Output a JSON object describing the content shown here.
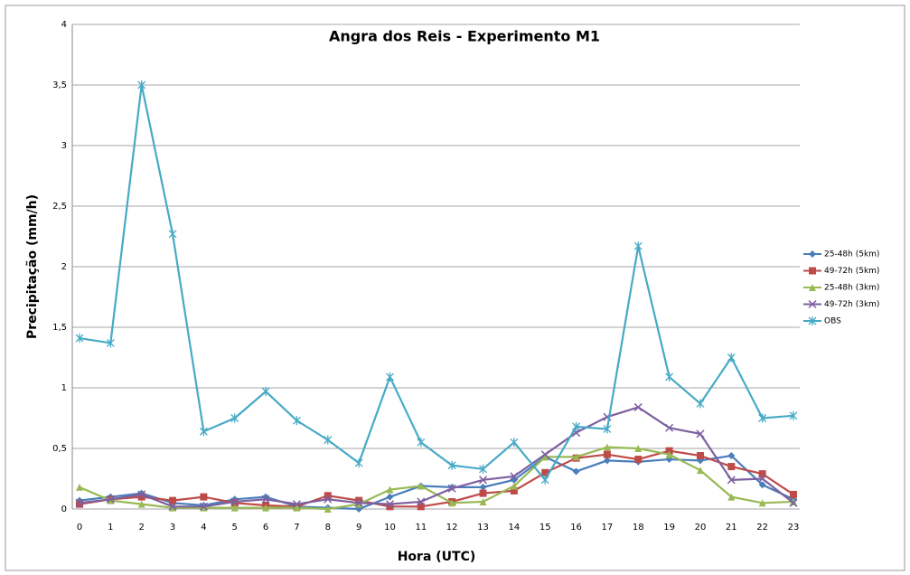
{
  "chart_data": {
    "type": "line",
    "title": "Angra dos Reis - Experimento M1",
    "x_label": "Hora (UTC)",
    "y_label": "Precipitação (mm/h)",
    "categories": [
      "0",
      "1",
      "2",
      "3",
      "4",
      "5",
      "6",
      "7",
      "8",
      "9",
      "10",
      "11",
      "12",
      "13",
      "14",
      "15",
      "16",
      "17",
      "18",
      "19",
      "20",
      "21",
      "22",
      "23"
    ],
    "series": [
      {
        "name": "25-48h (5km)",
        "color": "#4a7ebb",
        "marker": "diamond",
        "values": [
          0.07,
          0.1,
          0.13,
          0.05,
          0.03,
          0.08,
          0.1,
          0.02,
          0.01,
          0.0,
          0.1,
          0.19,
          0.18,
          0.18,
          0.24,
          0.43,
          0.31,
          0.4,
          0.39,
          0.41,
          0.4,
          0.44,
          0.2,
          0.08
        ]
      },
      {
        "name": "49-72h (5km)",
        "color": "#be4b48",
        "marker": "square",
        "values": [
          0.04,
          0.08,
          0.1,
          0.07,
          0.1,
          0.05,
          0.03,
          0.02,
          0.11,
          0.07,
          0.02,
          0.02,
          0.06,
          0.13,
          0.15,
          0.3,
          0.42,
          0.45,
          0.41,
          0.48,
          0.44,
          0.35,
          0.29,
          0.12
        ]
      },
      {
        "name": "25-48h (3km)",
        "color": "#98b954",
        "marker": "triangle",
        "values": [
          0.18,
          0.07,
          0.04,
          0.01,
          0.01,
          0.01,
          0.01,
          0.01,
          0.0,
          0.04,
          0.16,
          0.19,
          0.05,
          0.06,
          0.19,
          0.43,
          0.43,
          0.51,
          0.5,
          0.45,
          0.32,
          0.1,
          0.05,
          0.06
        ]
      },
      {
        "name": "49-72h (3km)",
        "color": "#7d60a0",
        "marker": "x",
        "values": [
          0.05,
          0.08,
          0.12,
          0.02,
          0.02,
          0.06,
          0.08,
          0.04,
          0.08,
          0.05,
          0.04,
          0.06,
          0.17,
          0.24,
          0.27,
          0.45,
          0.63,
          0.76,
          0.84,
          0.67,
          0.62,
          0.24,
          0.25,
          0.05
        ]
      },
      {
        "name": "OBS",
        "color": "#46aac5",
        "marker": "star",
        "values": [
          1.41,
          1.37,
          3.5,
          2.27,
          0.64,
          0.75,
          0.97,
          0.73,
          0.57,
          0.38,
          1.09,
          0.55,
          0.36,
          0.33,
          0.55,
          0.24,
          0.68,
          0.66,
          2.17,
          1.09,
          0.87,
          1.25,
          0.75,
          0.77
        ]
      }
    ],
    "ylim": [
      0,
      4
    ],
    "yticks": [
      0,
      {
        "value": 0.5,
        "label": "0,5"
      },
      1,
      {
        "value": 1.5,
        "label": "1,5"
      },
      2,
      {
        "value": 2.5,
        "label": "2,5"
      },
      3,
      {
        "value": 3.5,
        "label": "3,5"
      },
      4
    ],
    "grid": true,
    "legend": "right"
  }
}
